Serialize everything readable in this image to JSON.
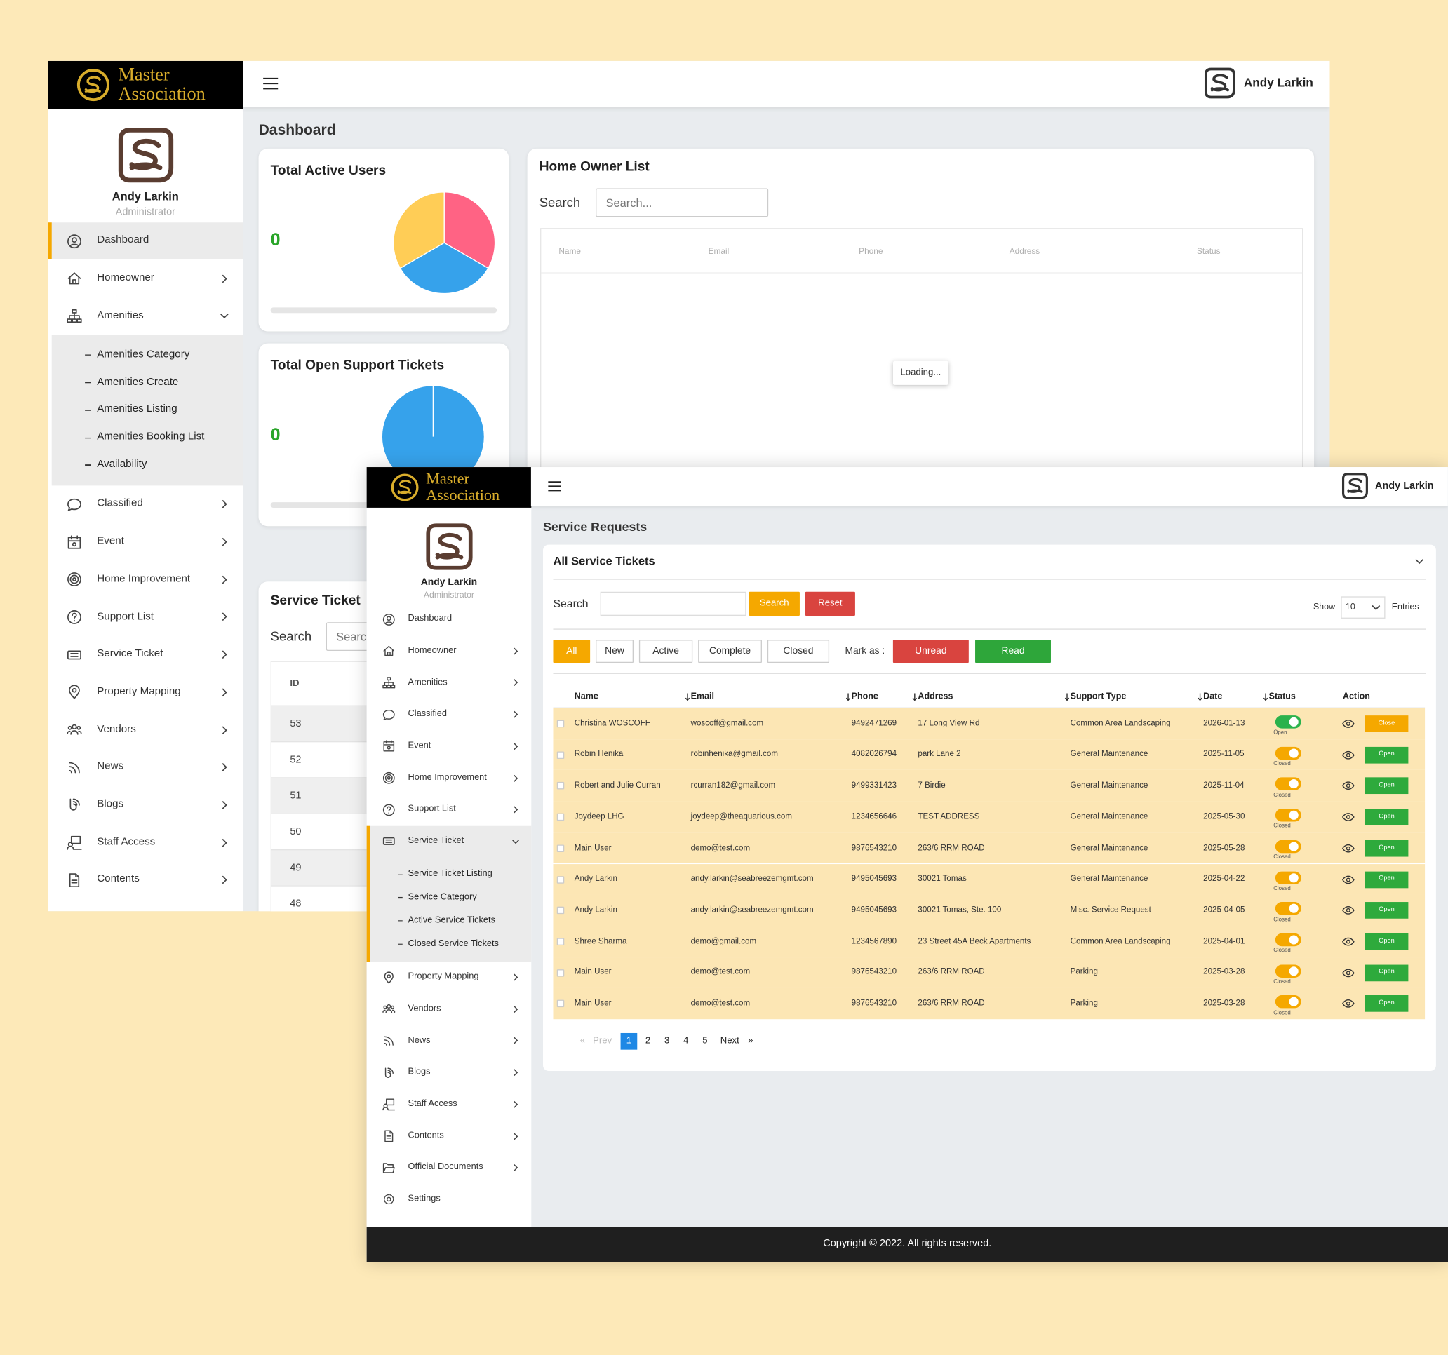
{
  "window_main": {
    "brand": [
      "Master",
      "Association"
    ],
    "topbar_user": "Andy Larkin",
    "profile": {
      "name": "Andy Larkin",
      "role": "Administrator"
    },
    "menu": [
      {
        "label": "Dashboard",
        "arrow": "none",
        "active": true
      },
      {
        "label": "Homeowner",
        "arrow": "right"
      },
      {
        "label": "Amenities",
        "arrow": "down",
        "submenu": [
          "Amenities Category",
          "Amenities Create",
          "Amenities Listing",
          "Amenities Booking List",
          "Availability"
        ]
      },
      {
        "label": "Classified",
        "arrow": "right"
      },
      {
        "label": "Event",
        "arrow": "right"
      },
      {
        "label": "Home Improvement",
        "arrow": "right"
      },
      {
        "label": "Support List",
        "arrow": "right"
      },
      {
        "label": "Service Ticket",
        "arrow": "right"
      },
      {
        "label": "Property Mapping",
        "arrow": "right"
      },
      {
        "label": "Vendors",
        "arrow": "right"
      },
      {
        "label": "News",
        "arrow": "right"
      },
      {
        "label": "Blogs",
        "arrow": "right"
      },
      {
        "label": "Staff Access",
        "arrow": "right"
      },
      {
        "label": "Contents",
        "arrow": "right"
      }
    ],
    "page_title": "Dashboard",
    "stat_cards": [
      {
        "title": "Total Active Users",
        "value": 0,
        "pie": [
          {
            "color": "#ff6384",
            "share": 33.3
          },
          {
            "color": "#36a2eb",
            "share": 33.3
          },
          {
            "color": "#ffcd56",
            "share": 33.3
          }
        ]
      },
      {
        "title": "Total Open Support Tickets",
        "value": 0,
        "pie": [
          {
            "color": "#36a2eb",
            "share": 100
          }
        ]
      }
    ],
    "homeowner_list": {
      "title": "Home Owner List",
      "search_label": "Search",
      "search_placeholder": "Search...",
      "columns": [
        "Name",
        "Email",
        "Phone",
        "Address",
        "Status"
      ],
      "loading": "Loading..."
    },
    "service_ticket_card": {
      "title": "Service Ticket",
      "search_label": "Search",
      "search_placeholder": "Search...",
      "columns": [
        "ID"
      ],
      "ids": [
        53,
        52,
        51,
        50,
        49,
        48
      ]
    }
  },
  "window_service": {
    "brand": [
      "Master",
      "Association"
    ],
    "topbar_user": "Andy Larkin",
    "profile": {
      "name": "Andy Larkin",
      "role": "Administrator"
    },
    "menu": [
      {
        "label": "Dashboard",
        "arrow": "none"
      },
      {
        "label": "Homeowner",
        "arrow": "right"
      },
      {
        "label": "Amenities",
        "arrow": "right"
      },
      {
        "label": "Classified",
        "arrow": "right"
      },
      {
        "label": "Event",
        "arrow": "right"
      },
      {
        "label": "Home Improvement",
        "arrow": "right"
      },
      {
        "label": "Support List",
        "arrow": "right"
      },
      {
        "label": "Service Ticket",
        "arrow": "down",
        "active": true,
        "submenu": [
          "Service Ticket Listing",
          "Service Category",
          "Active Service Tickets",
          "Closed Service Tickets"
        ]
      },
      {
        "label": "Property Mapping",
        "arrow": "right"
      },
      {
        "label": "Vendors",
        "arrow": "right"
      },
      {
        "label": "News",
        "arrow": "right"
      },
      {
        "label": "Blogs",
        "arrow": "right"
      },
      {
        "label": "Staff Access",
        "arrow": "right"
      },
      {
        "label": "Contents",
        "arrow": "right"
      },
      {
        "label": "Official Documents",
        "arrow": "right"
      },
      {
        "label": "Settings",
        "arrow": "none"
      }
    ],
    "page_title": "Service Requests",
    "card_title": "All Service Tickets",
    "search_label": "Search",
    "search_button": "Search",
    "reset_button": "Reset",
    "show_label": "Show",
    "page_size": 10,
    "entries_label": "Entries",
    "filters": [
      "All",
      "New",
      "Active",
      "Complete",
      "Closed"
    ],
    "mark_as_label": "Mark as :",
    "mark_buttons": [
      "Unread",
      "Read"
    ],
    "status_colors": {
      "Open": "#2bb24c",
      "Closed": "#f5a800"
    },
    "action_colors": {
      "Close": "#f5a800",
      "Open": "#2eaa3c"
    },
    "table": {
      "columns": [
        {
          "label": "Name",
          "sortable": false
        },
        {
          "label": "Email",
          "sortable": true
        },
        {
          "label": "Phone",
          "sortable": true
        },
        {
          "label": "Address",
          "sortable": true
        },
        {
          "label": "Support Type",
          "sortable": true
        },
        {
          "label": "Date",
          "sortable": true
        },
        {
          "label": "Status",
          "sortable": true
        },
        {
          "label": "Action",
          "sortable": false
        }
      ],
      "rows": [
        {
          "name": "Christina WOSCOFF",
          "email": "woscoff@gmail.com",
          "phone": "9492471269",
          "address": "17 Long View Rd",
          "support_type": "Common Area Landscaping",
          "date": "2026-01-13",
          "status": "Open",
          "action": "Close"
        },
        {
          "name": "Robin Henika",
          "email": "robinhenika@gmail.com",
          "phone": "4082026794",
          "address": "park Lane 2",
          "support_type": "General Maintenance",
          "date": "2025-11-05",
          "status": "Closed",
          "action": "Open"
        },
        {
          "name": "Robert and Julie Curran",
          "email": "rcurran182@gmail.com",
          "phone": "9499331423",
          "address": "7 Birdie",
          "support_type": "General Maintenance",
          "date": "2025-11-04",
          "status": "Closed",
          "action": "Open"
        },
        {
          "name": "Joydeep LHG",
          "email": "joydeep@theaquarious.com",
          "phone": "1234656646",
          "address": "TEST ADDRESS",
          "support_type": "General Maintenance",
          "date": "2025-05-30",
          "status": "Closed",
          "action": "Open"
        },
        {
          "name": "Main User",
          "email": "demo@test.com",
          "phone": "9876543210",
          "address": "263/6 RRM ROAD",
          "support_type": "General Maintenance",
          "date": "2025-05-28",
          "status": "Closed",
          "action": "Open"
        },
        {
          "name": "Andy Larkin",
          "email": "andy.larkin@seabreezemgmt.com",
          "phone": "9495045693",
          "address": "30021 Tomas",
          "support_type": "General Maintenance",
          "date": "2025-04-22",
          "status": "Closed",
          "action": "Open"
        },
        {
          "name": "Andy Larkin",
          "email": "andy.larkin@seabreezemgmt.com",
          "phone": "9495045693",
          "address": "30021 Tomas, Ste. 100",
          "support_type": "Misc. Service Request",
          "date": "2025-04-05",
          "status": "Closed",
          "action": "Open"
        },
        {
          "name": "Shree Sharma",
          "email": "demo@gmail.com",
          "phone": "1234567890",
          "address": "23 Street 45A Beck Apartments",
          "support_type": "Common Area Landscaping",
          "date": "2025-04-01",
          "status": "Closed",
          "action": "Open"
        },
        {
          "name": "Main User",
          "email": "demo@test.com",
          "phone": "9876543210",
          "address": "263/6 RRM ROAD",
          "support_type": "Parking",
          "date": "2025-03-28",
          "status": "Closed",
          "action": "Open"
        },
        {
          "name": "Main User",
          "email": "demo@test.com",
          "phone": "9876543210",
          "address": "263/6 RRM ROAD",
          "support_type": "Parking",
          "date": "2025-03-28",
          "status": "Closed",
          "action": "Open"
        }
      ]
    },
    "pagination": {
      "prev_icon": "«",
      "prev": "Prev",
      "pages": [
        "1",
        "2",
        "3",
        "4",
        "5"
      ],
      "next": "Next",
      "next_icon": "»"
    },
    "footer": "Copyright © 2022. All rights reserved."
  }
}
